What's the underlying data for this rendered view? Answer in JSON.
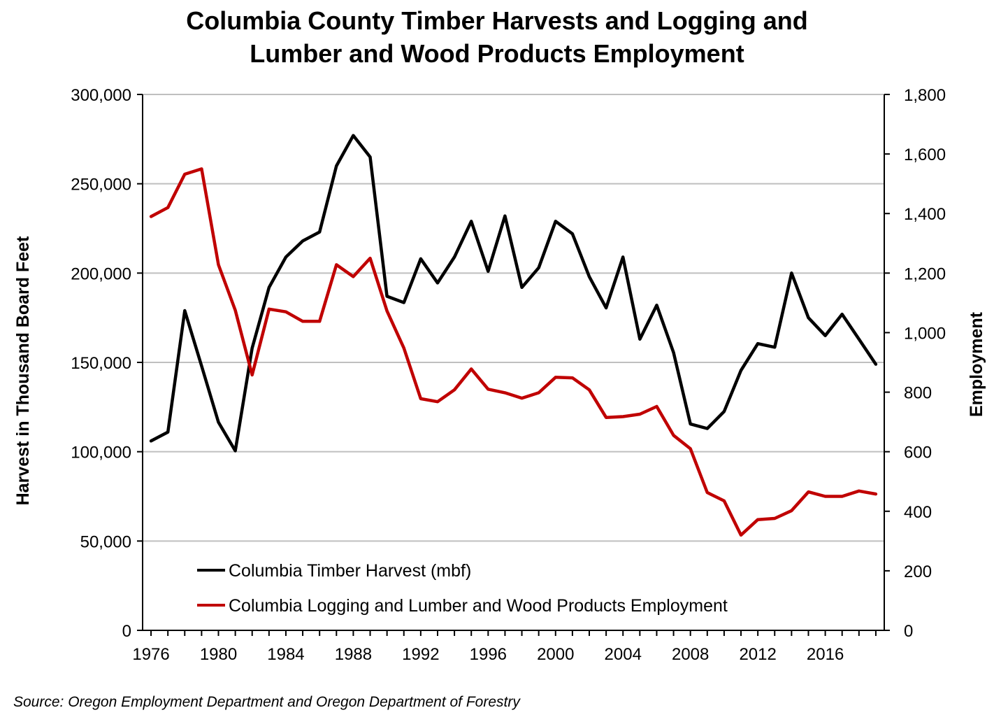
{
  "chart_data": {
    "type": "line",
    "title_line1": "Columbia County Timber Harvests and Logging and",
    "title_line2": "Lumber and Wood Products Employment",
    "ylabel_left": "Harvest in Thousand Board Feet",
    "ylabel_right": "Employment",
    "source": "Source: Oregon Employment Department and Oregon Department of Forestry",
    "x": [
      1976,
      1977,
      1978,
      1979,
      1980,
      1981,
      1982,
      1983,
      1984,
      1985,
      1986,
      1987,
      1988,
      1989,
      1990,
      1991,
      1992,
      1993,
      1994,
      1995,
      1996,
      1997,
      1998,
      1999,
      2000,
      2001,
      2002,
      2003,
      2004,
      2005,
      2006,
      2007,
      2008,
      2009,
      2010,
      2011,
      2012,
      2013,
      2014,
      2015,
      2016,
      2017,
      2018,
      2019
    ],
    "x_tick_labels": [
      "1976",
      "1980",
      "1984",
      "1988",
      "1992",
      "1996",
      "2000",
      "2004",
      "2008",
      "2012",
      "2016"
    ],
    "x_ticks": [
      1976,
      1980,
      1984,
      1988,
      1992,
      1996,
      2000,
      2004,
      2008,
      2012,
      2016
    ],
    "xlim": [
      1975.5,
      2019.5
    ],
    "ylim_left": [
      0,
      300000
    ],
    "ylim_right": [
      0,
      1800
    ],
    "y_left_ticks": [
      0,
      50000,
      100000,
      150000,
      200000,
      250000,
      300000
    ],
    "y_left_tick_labels": [
      "0",
      "50,000",
      "100,000",
      "150,000",
      "200,000",
      "250,000",
      "300,000"
    ],
    "y_right_ticks": [
      0,
      200,
      400,
      600,
      800,
      1000,
      1200,
      1400,
      1600,
      1800
    ],
    "y_right_tick_labels": [
      "0",
      "200",
      "400",
      "600",
      "800",
      "1,000",
      "1,200",
      "1,400",
      "1,600",
      "1,800"
    ],
    "grid": "horizontal gridlines at left-axis ticks",
    "legend_position": "bottom-left inside plot",
    "series": [
      {
        "name": "Columbia Timber Harvest (mbf)",
        "axis": "left",
        "color": "#000000",
        "values": [
          106000,
          111000,
          179000,
          148000,
          116500,
          100500,
          158000,
          192000,
          209000,
          218000,
          223000,
          260000,
          277000,
          265000,
          187000,
          183500,
          208000,
          194500,
          209000,
          229000,
          201000,
          232000,
          192000,
          203000,
          229000,
          222000,
          198000,
          180500,
          209000,
          163000,
          182000,
          155500,
          115500,
          113000,
          122500,
          145500,
          160500,
          158500,
          200000,
          175000,
          165000,
          177000,
          163000,
          149000
        ]
      },
      {
        "name": "Columbia Logging and Lumber and Wood Products Employment",
        "axis": "right",
        "color": "#c00000",
        "values": [
          1390,
          1420,
          1532,
          1550,
          1228,
          1075,
          858,
          1079,
          1070,
          1038,
          1038,
          1228,
          1188,
          1250,
          1073,
          948,
          778,
          768,
          808,
          878,
          810,
          798,
          780,
          798,
          850,
          848,
          808,
          715,
          718,
          726,
          752,
          655,
          610,
          463,
          435,
          320,
          372,
          376,
          402,
          465,
          450,
          450,
          468,
          458
        ]
      }
    ]
  }
}
